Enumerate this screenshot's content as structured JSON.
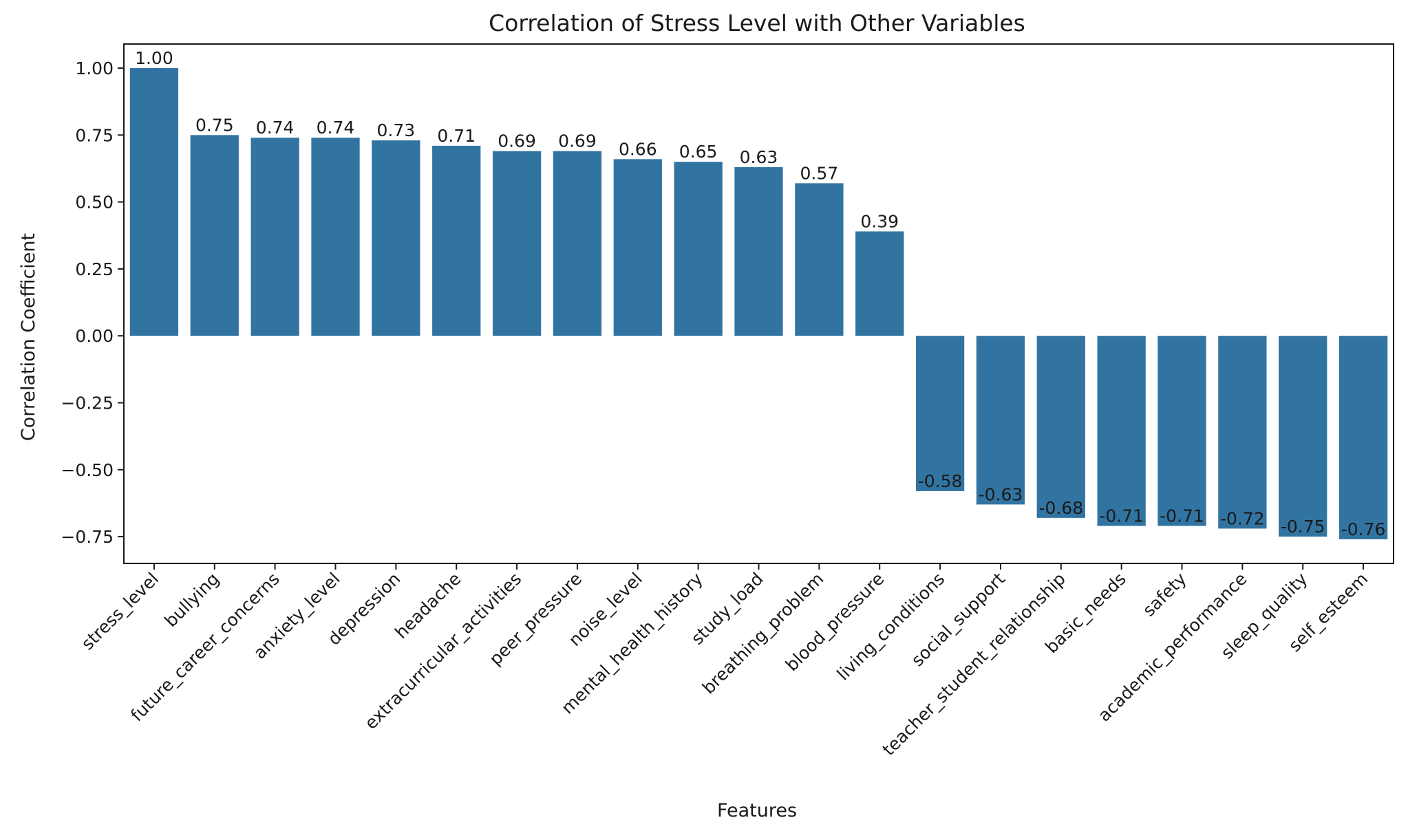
{
  "chart_data": {
    "type": "bar",
    "title": "Correlation of Stress Level with Other Variables",
    "xlabel": "Features",
    "ylabel": "Correlation Coefficient",
    "categories": [
      "stress_level",
      "bullying",
      "future_career_concerns",
      "anxiety_level",
      "depression",
      "headache",
      "extracurricular_activities",
      "peer_pressure",
      "noise_level",
      "mental_health_history",
      "study_load",
      "breathing_problem",
      "blood_pressure",
      "living_conditions",
      "social_support",
      "teacher_student_relationship",
      "basic_needs",
      "safety",
      "academic_performance",
      "sleep_quality",
      "self_esteem"
    ],
    "values": [
      1.0,
      0.75,
      0.74,
      0.74,
      0.73,
      0.71,
      0.69,
      0.69,
      0.66,
      0.65,
      0.63,
      0.57,
      0.39,
      -0.58,
      -0.63,
      -0.68,
      -0.71,
      -0.71,
      -0.72,
      -0.75,
      -0.76
    ],
    "value_labels": [
      "1.00",
      "0.75",
      "0.74",
      "0.74",
      "0.73",
      "0.71",
      "0.69",
      "0.69",
      "0.66",
      "0.65",
      "0.63",
      "0.57",
      "0.39",
      "-0.58",
      "-0.63",
      "-0.68",
      "-0.71",
      "-0.71",
      "-0.72",
      "-0.75",
      "-0.76"
    ],
    "yticks": [
      1.0,
      0.75,
      0.5,
      0.25,
      0.0,
      -0.25,
      -0.5,
      -0.75
    ],
    "ytick_labels": [
      "1.00",
      "0.75",
      "0.50",
      "0.25",
      "0.00",
      "−0.25",
      "−0.50",
      "−0.75"
    ],
    "ylim": [
      -0.85,
      1.09
    ],
    "grid": false,
    "bar_color": "#3274a1"
  }
}
